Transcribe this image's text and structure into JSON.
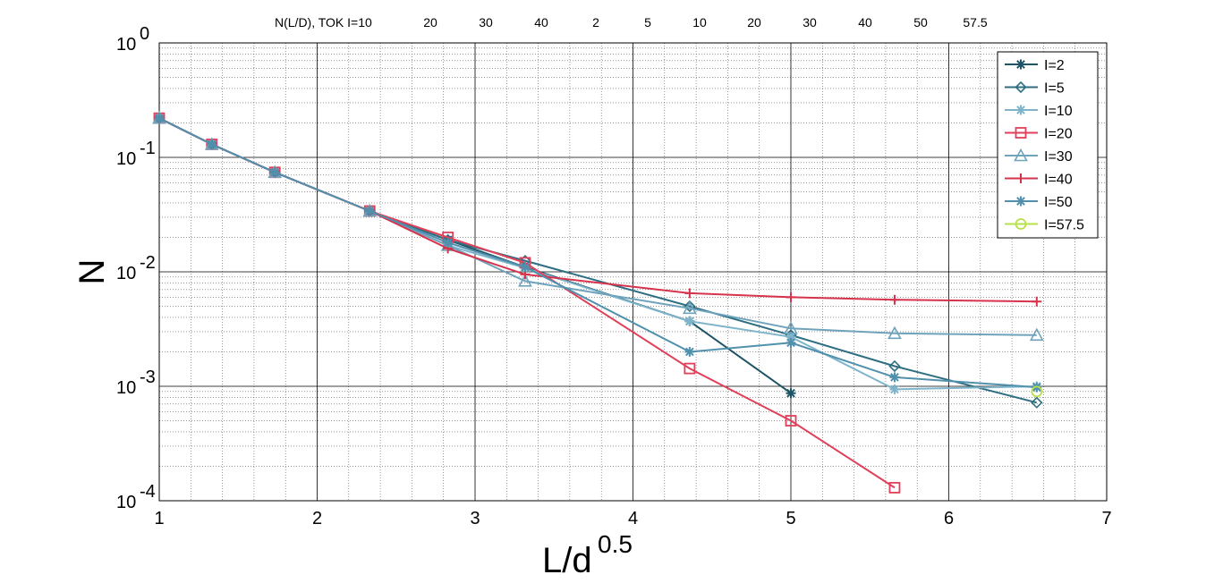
{
  "chart_data": {
    "type": "line",
    "top_title": "N(L/D), TOK I=10",
    "top_values": [
      "20",
      "30",
      "40",
      "2",
      "5",
      "10",
      "20",
      "30",
      "40",
      "50",
      "57.5"
    ],
    "xlabel": "L/d",
    "xlabel_sup": "0.5",
    "ylabel": "N",
    "xlim": [
      1,
      7
    ],
    "ylim": [
      0.0001,
      1
    ],
    "yscale": "log",
    "grid": true,
    "legend_position": "top-right",
    "x_ticks": [
      "1",
      "2",
      "3",
      "4",
      "5",
      "6",
      "7"
    ],
    "y_ticks": [
      {
        "base": "10",
        "exp": "-4",
        "value": 0.0001
      },
      {
        "base": "10",
        "exp": "-3",
        "value": 0.001
      },
      {
        "base": "10",
        "exp": "-2",
        "value": 0.01
      },
      {
        "base": "10",
        "exp": "-1",
        "value": 0.1
      },
      {
        "base": "10",
        "exp": "0",
        "value": 1
      }
    ],
    "series": [
      {
        "name": "I=2",
        "color": "#1e5566",
        "marker": "asterisk",
        "x": [
          1,
          1.333,
          1.732,
          2.333,
          2.828,
          3.317,
          4.359,
          5
        ],
        "y": [
          0.22,
          0.13,
          0.074,
          0.034,
          0.019,
          0.011,
          0.0037,
          0.00087
        ]
      },
      {
        "name": "I=5",
        "color": "#2e6e82",
        "marker": "diamond",
        "x": [
          1,
          1.333,
          1.732,
          2.333,
          2.828,
          3.317,
          4.359,
          5,
          5.657,
          6.557
        ],
        "y": [
          0.22,
          0.13,
          0.074,
          0.034,
          0.019,
          0.0125,
          0.005,
          0.0028,
          0.0015,
          0.00072
        ]
      },
      {
        "name": "I=10",
        "color": "#7fb5cc",
        "marker": "asterisk",
        "x": [
          1,
          1.333,
          1.732,
          2.333,
          2.828,
          3.317,
          4.359,
          5,
          5.657,
          6.557
        ],
        "y": [
          0.22,
          0.13,
          0.074,
          0.034,
          0.017,
          0.0108,
          0.0037,
          0.0027,
          0.00094,
          0.001
        ]
      },
      {
        "name": "I=20",
        "color": "#e0405a",
        "marker": "square",
        "x": [
          1,
          1.333,
          1.732,
          2.333,
          2.828,
          3.317,
          4.359,
          5,
          5.657
        ],
        "y": [
          0.22,
          0.13,
          0.074,
          0.034,
          0.02,
          0.012,
          0.00143,
          0.0005,
          0.00013
        ]
      },
      {
        "name": "I=30",
        "color": "#6fa3bc",
        "marker": "triangle",
        "x": [
          1,
          1.333,
          1.732,
          2.333,
          2.828,
          3.317,
          4.359,
          5,
          5.657,
          6.557
        ],
        "y": [
          0.22,
          0.13,
          0.074,
          0.034,
          0.017,
          0.0083,
          0.0048,
          0.0032,
          0.0029,
          0.0028
        ]
      },
      {
        "name": "I=40",
        "color": "#d6334d",
        "marker": "plus",
        "x": [
          1,
          1.333,
          1.732,
          2.333,
          2.828,
          3.317,
          4.359,
          5,
          5.657,
          6.557
        ],
        "y": [
          0.22,
          0.13,
          0.074,
          0.034,
          0.016,
          0.0095,
          0.0065,
          0.006,
          0.0057,
          0.0055
        ]
      },
      {
        "name": "I=50",
        "color": "#5090ad",
        "marker": "asterisk",
        "x": [
          1,
          1.333,
          1.732,
          2.333,
          2.828,
          3.317,
          4.359,
          5,
          5.657,
          6.557
        ],
        "y": [
          0.22,
          0.13,
          0.074,
          0.034,
          0.018,
          0.011,
          0.002,
          0.0024,
          0.0012,
          0.00098
        ]
      },
      {
        "name": "I=57.5",
        "color": "#b8e04a",
        "marker": "circle",
        "x": [
          6.557
        ],
        "y": [
          0.0009
        ]
      }
    ]
  }
}
